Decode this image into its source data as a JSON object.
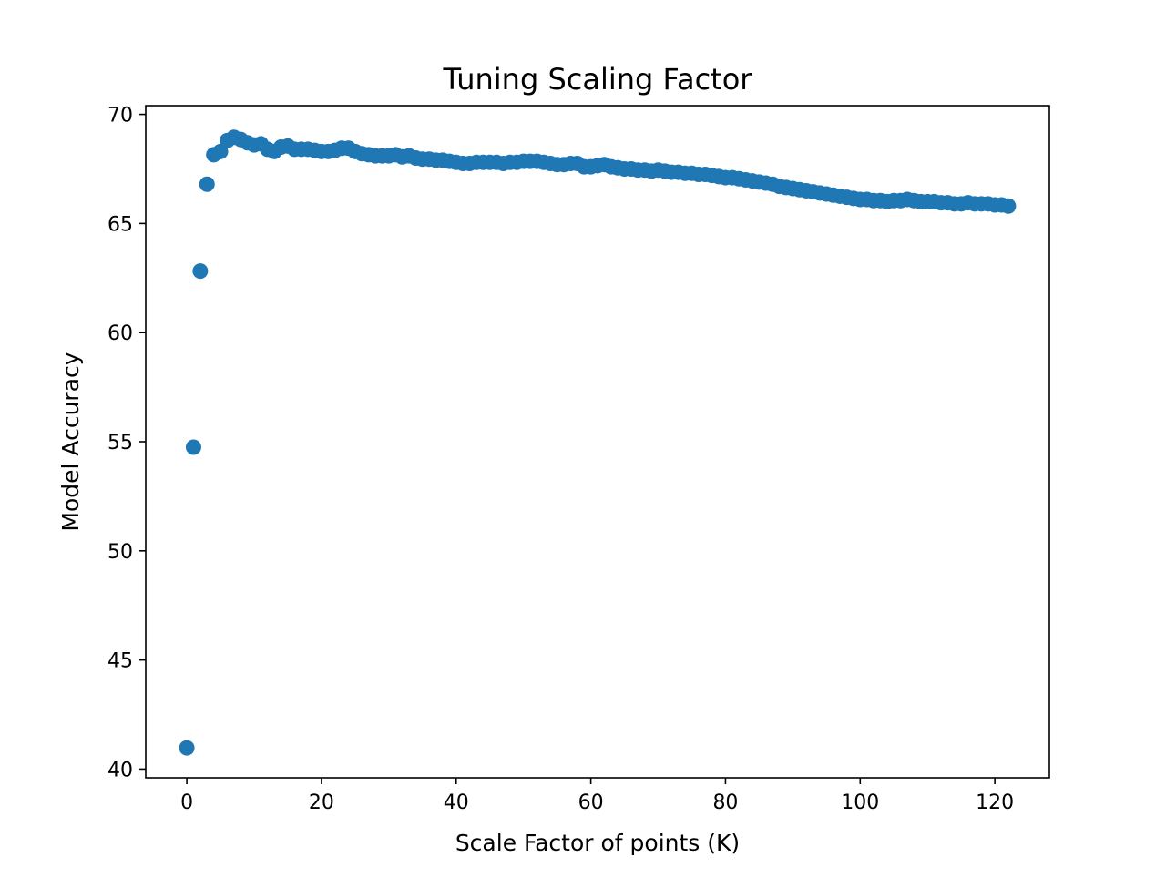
{
  "chart_data": {
    "type": "scatter",
    "title": "Tuning Scaling Factor",
    "xlabel": "Scale Factor of points (K)",
    "ylabel": "Model Accuracy",
    "xlim": [
      -6.1,
      128.1
    ],
    "ylim": [
      39.6,
      70.4
    ],
    "xticks": [
      0,
      20,
      40,
      60,
      80,
      100,
      120
    ],
    "yticks": [
      40,
      45,
      50,
      55,
      60,
      65,
      70
    ],
    "grid": false,
    "marker_color": "#1f77b4",
    "series": [
      {
        "x": [
          0,
          1,
          2,
          3,
          4,
          5,
          6,
          7,
          8,
          9,
          10,
          11,
          12,
          13,
          14,
          15,
          16,
          17,
          18,
          19,
          20,
          21,
          22,
          23,
          24,
          25,
          26,
          27,
          28,
          29,
          30,
          31,
          32,
          33,
          34,
          35,
          36,
          37,
          38,
          39,
          40,
          41,
          42,
          43,
          44,
          45,
          46,
          47,
          48,
          49,
          50,
          51,
          52,
          53,
          54,
          55,
          56,
          57,
          58,
          59,
          60,
          61,
          62,
          63,
          64,
          65,
          66,
          67,
          68,
          69,
          70,
          71,
          72,
          73,
          74,
          75,
          76,
          77,
          78,
          79,
          80,
          81,
          82,
          83,
          84,
          85,
          86,
          87,
          88,
          89,
          90,
          91,
          92,
          93,
          94,
          95,
          96,
          97,
          98,
          99,
          100,
          101,
          102,
          103,
          104,
          105,
          106,
          107,
          108,
          109,
          110,
          111,
          112,
          113,
          114,
          115,
          116,
          117,
          118,
          119,
          120,
          121,
          122
        ],
        "y": [
          40.97,
          54.75,
          62.82,
          66.8,
          68.15,
          68.3,
          68.8,
          68.95,
          68.85,
          68.7,
          68.6,
          68.65,
          68.4,
          68.3,
          68.5,
          68.55,
          68.4,
          68.4,
          68.4,
          68.35,
          68.3,
          68.3,
          68.35,
          68.45,
          68.45,
          68.3,
          68.2,
          68.15,
          68.1,
          68.1,
          68.1,
          68.15,
          68.05,
          68.1,
          68.0,
          67.95,
          67.95,
          67.9,
          67.9,
          67.85,
          67.8,
          67.75,
          67.75,
          67.8,
          67.8,
          67.8,
          67.8,
          67.75,
          67.8,
          67.8,
          67.85,
          67.85,
          67.85,
          67.8,
          67.75,
          67.7,
          67.7,
          67.75,
          67.75,
          67.6,
          67.6,
          67.65,
          67.7,
          67.6,
          67.55,
          67.5,
          67.5,
          67.45,
          67.45,
          67.4,
          67.45,
          67.4,
          67.35,
          67.35,
          67.3,
          67.3,
          67.25,
          67.25,
          67.2,
          67.15,
          67.1,
          67.1,
          67.05,
          67.0,
          66.95,
          66.9,
          66.85,
          66.8,
          66.7,
          66.65,
          66.6,
          66.55,
          66.5,
          66.45,
          66.4,
          66.35,
          66.3,
          66.25,
          66.2,
          66.15,
          66.1,
          66.1,
          66.05,
          66.05,
          66.0,
          66.05,
          66.05,
          66.1,
          66.05,
          66.0,
          66.0,
          66.0,
          65.95,
          65.95,
          65.9,
          65.9,
          65.95,
          65.9,
          65.9,
          65.9,
          65.85,
          65.85,
          65.8
        ]
      }
    ]
  }
}
